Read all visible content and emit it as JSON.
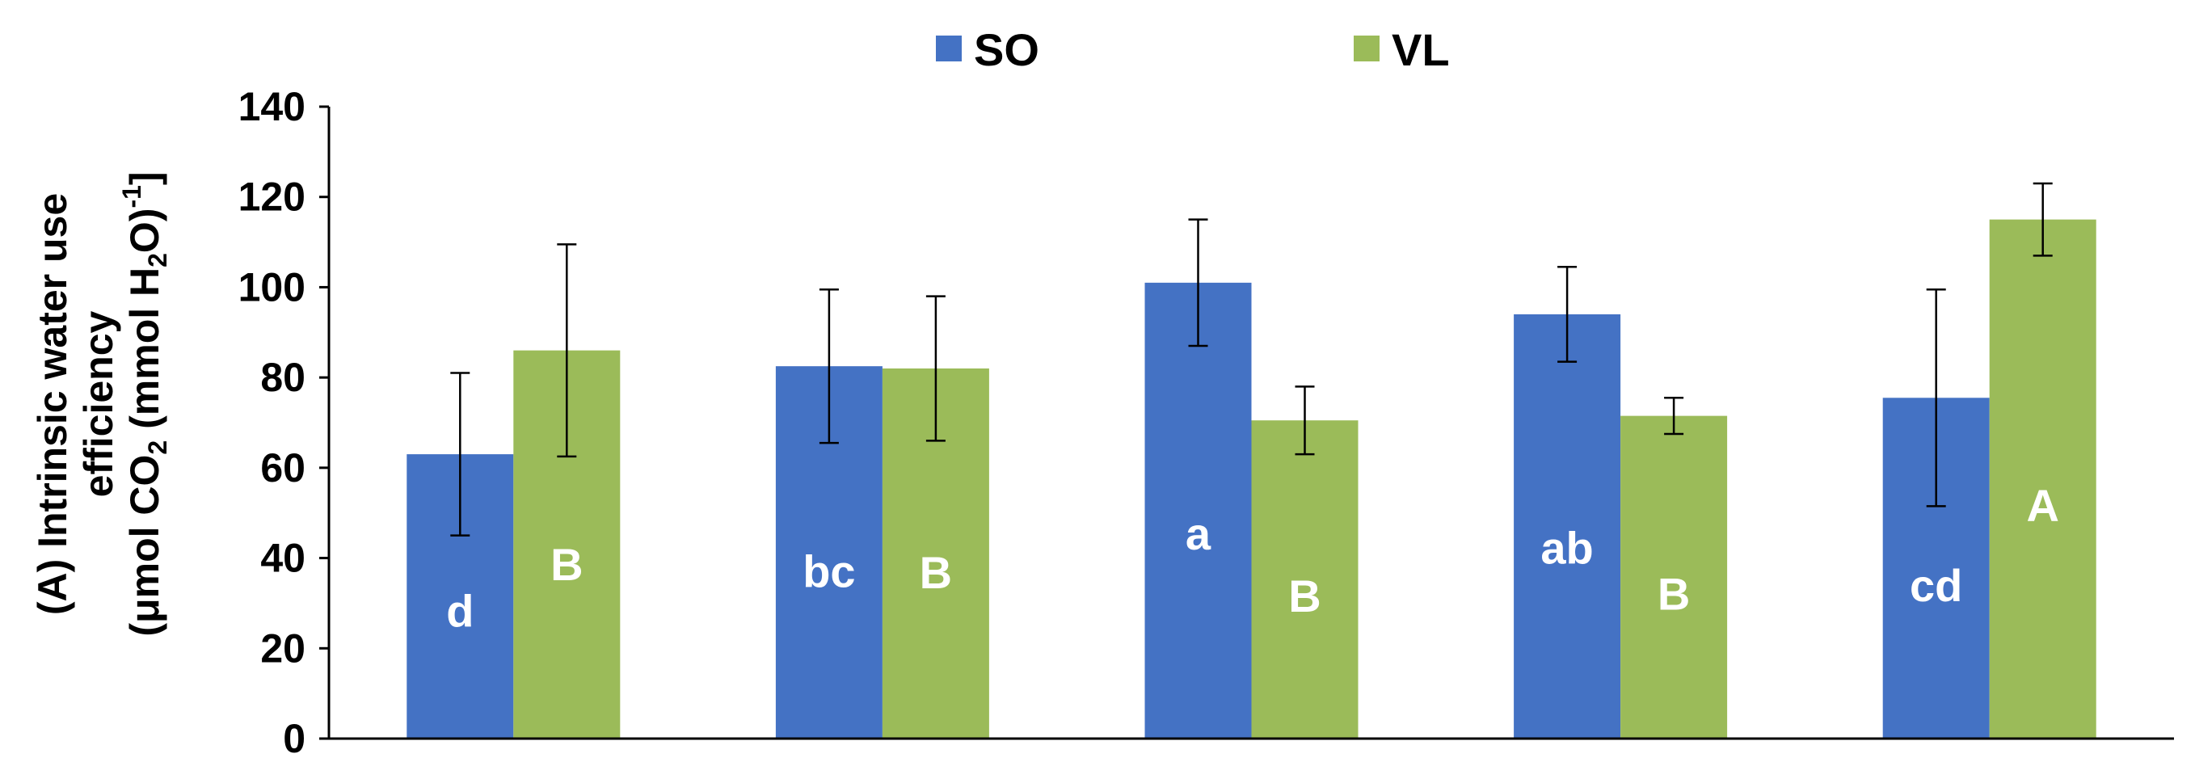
{
  "chart_data": {
    "type": "bar",
    "title": "",
    "categories": [
      "",
      "",
      "",
      "",
      ""
    ],
    "ylim": [
      0,
      140
    ],
    "yticks": [
      0,
      20,
      40,
      60,
      80,
      100,
      120,
      140
    ],
    "ylabel": {
      "line1": "(A) Intrinsic water use",
      "line2": "efficiency",
      "line3_parts": [
        "(μmol CO",
        "2",
        " (mmol H",
        "2",
        "O)",
        "-1",
        "]"
      ]
    },
    "legend": {
      "position": "top-center"
    },
    "series": [
      {
        "name": "SO",
        "color": "#4472C4",
        "values": [
          63,
          82.5,
          101,
          94,
          75.5
        ],
        "errors": [
          18,
          17,
          14,
          10.5,
          24
        ],
        "labels": [
          "d",
          "bc",
          "a",
          "ab",
          "cd"
        ]
      },
      {
        "name": "VL",
        "color": "#9BBB59",
        "values": [
          86,
          82,
          70.5,
          71.5,
          115
        ],
        "errors": [
          23.5,
          16,
          7.5,
          4,
          8
        ],
        "labels": [
          "B",
          "B",
          "B",
          "B",
          "A"
        ]
      }
    ]
  }
}
